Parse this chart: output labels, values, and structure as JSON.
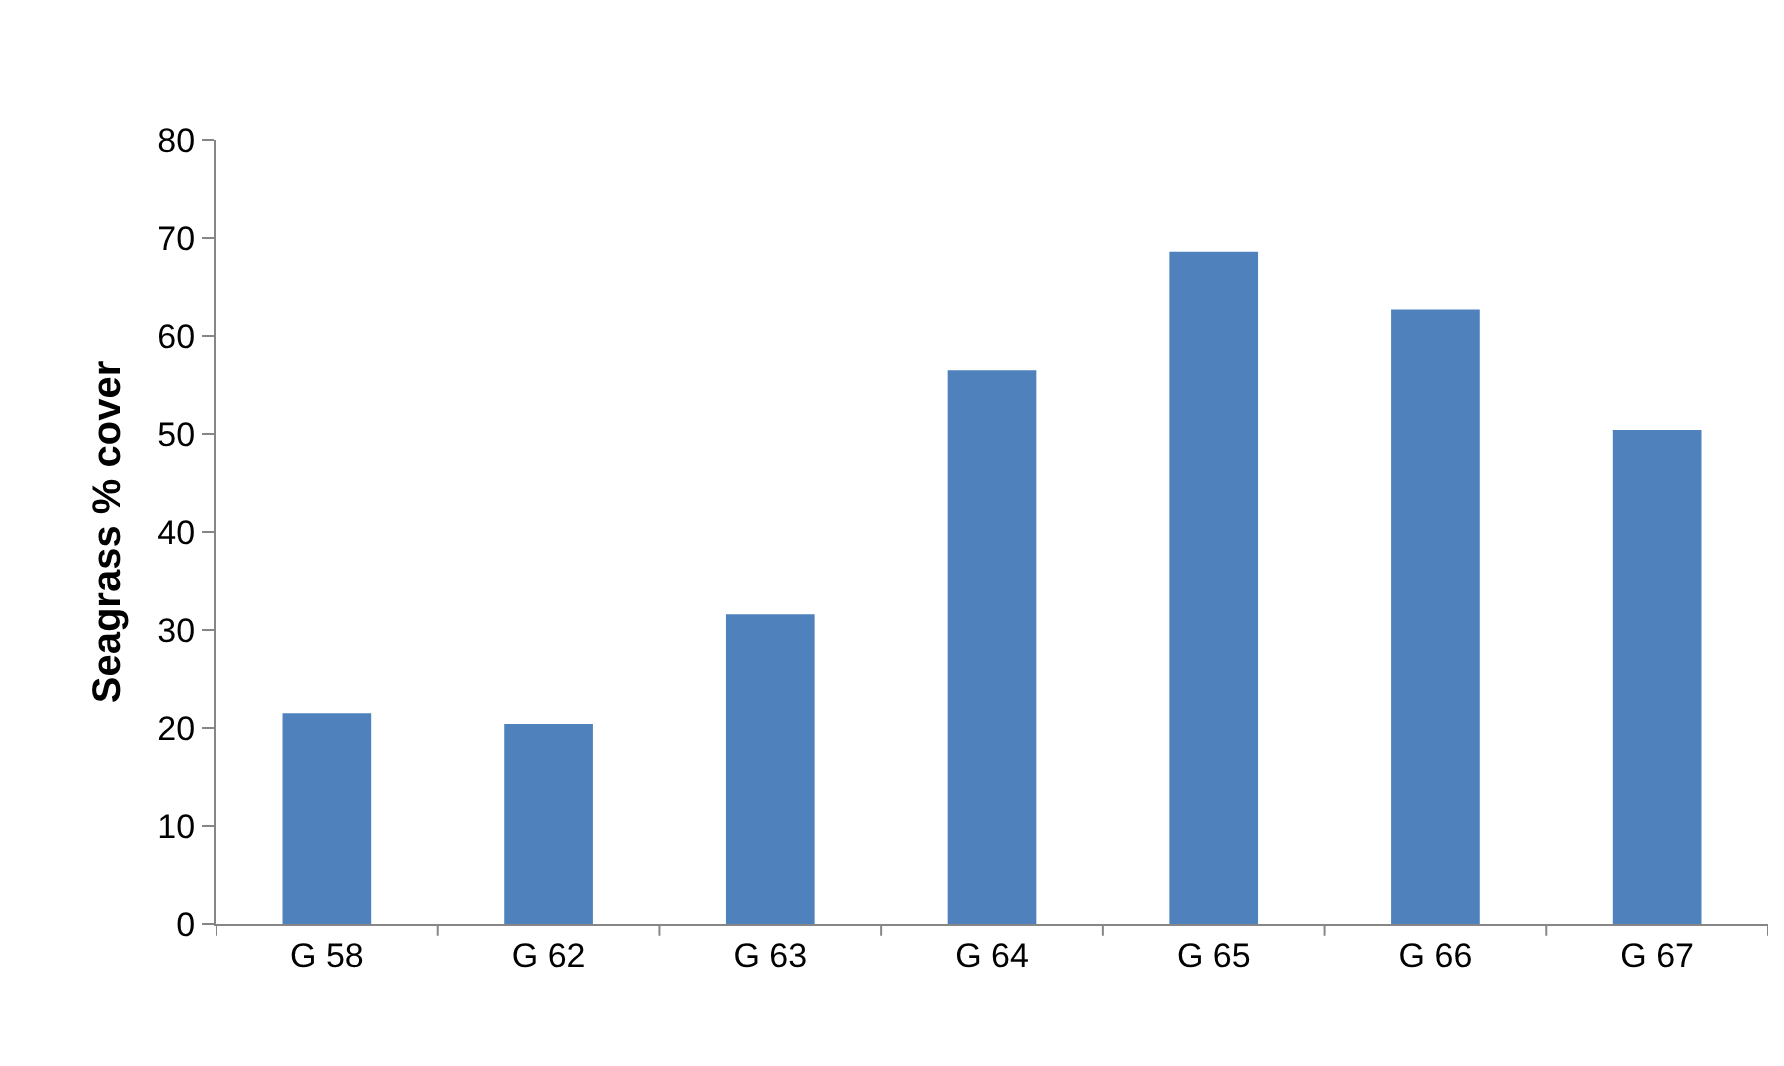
{
  "chart_data": {
    "type": "bar",
    "ylabel": "Seagrass % cover",
    "categories": [
      "G 58",
      "G 62",
      "G 63",
      "G 64",
      "G 65",
      "G 66",
      "G 67"
    ],
    "values": [
      21.5,
      20.4,
      31.6,
      56.5,
      68.6,
      62.7,
      50.4
    ],
    "color": "#4f81bd",
    "ylim": [
      0,
      80
    ],
    "yticks": [
      0,
      10,
      20,
      30,
      40,
      50,
      60,
      70,
      80
    ]
  }
}
